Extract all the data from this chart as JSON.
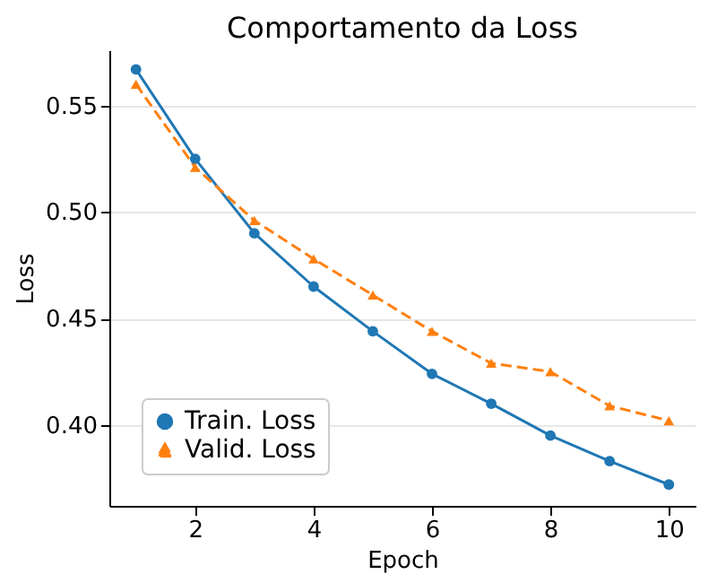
{
  "chart_data": {
    "type": "line",
    "title": "Comportamento da Loss",
    "xlabel": "Epoch",
    "ylabel": "Loss",
    "x": [
      1,
      2,
      3,
      4,
      5,
      6,
      7,
      8,
      9,
      10
    ],
    "series": [
      {
        "name": "Train. Loss",
        "color": "#1f77b4",
        "marker": "circle",
        "line_style": "solid",
        "values": [
          0.567,
          0.525,
          0.49,
          0.465,
          0.444,
          0.424,
          0.41,
          0.395,
          0.383,
          0.372
        ]
      },
      {
        "name": "Valid. Loss",
        "color": "#ff7f0e",
        "marker": "triangle",
        "line_style": "dashed",
        "values": [
          0.56,
          0.521,
          0.496,
          0.478,
          0.461,
          0.444,
          0.429,
          0.425,
          0.409,
          0.402
        ]
      }
    ],
    "xlim": [
      0.55,
      10.45
    ],
    "xticks": [
      2,
      4,
      6,
      8,
      10
    ],
    "ylim": [
      0.362,
      0.576
    ],
    "yticks": [
      {
        "value": 0.4,
        "label": "0.40"
      },
      0.45,
      {
        "value": 0.5,
        "label": "0.50"
      },
      0.55
    ],
    "grid": "y",
    "legend": "bottom left"
  }
}
